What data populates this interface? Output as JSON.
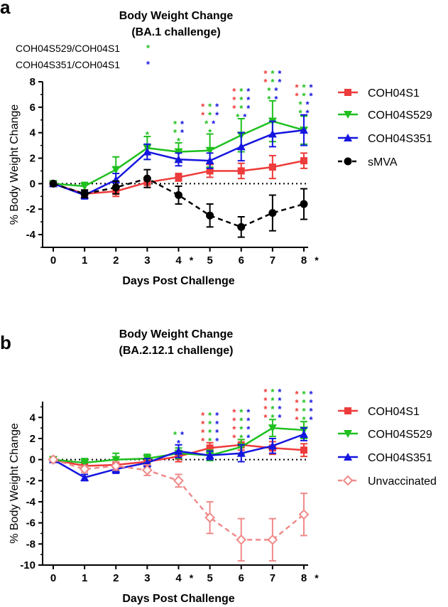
{
  "colors": {
    "COH04S1": "#ee3b3b",
    "COH04S529": "#1fc01f",
    "COH04S351": "#1515e0",
    "sMVA": "#000000",
    "Unvaccinated": "#f08a8a"
  },
  "chart_data": [
    {
      "type": "line",
      "panel_label": "a",
      "title": "Body Weight Change",
      "subtitle": "(BA.1 challenge)",
      "xlabel": "Days Post Challenge",
      "ylabel": "% Body Weight Change",
      "x": [
        0,
        1,
        2,
        3,
        4,
        5,
        6,
        7,
        8
      ],
      "x_tick_labels": [
        "0",
        "1",
        "2",
        "3",
        "4",
        "5",
        "6",
        "7",
        "8"
      ],
      "ylim": [
        -5,
        8
      ],
      "y_ticks": [
        -4,
        -2,
        0,
        2,
        4,
        6,
        8
      ],
      "y_tick_labels": [
        "-4",
        "-2",
        "0",
        "2",
        "4",
        "6",
        "8"
      ],
      "significant_days_marker": "*",
      "significant_days": [
        4,
        8
      ],
      "comparison_notes": [
        {
          "text": "COH04S529/COH04S1",
          "star": "*",
          "color_key": "COH04S529"
        },
        {
          "text": "COH04S351/COH04S1",
          "star": "*",
          "color_key": "COH04S351"
        }
      ],
      "legend": [
        "COH04S1",
        "COH04S529",
        "COH04S351",
        "sMVA"
      ],
      "series": [
        {
          "name": "COH04S1",
          "color_key": "COH04S1",
          "marker": "square",
          "dashed": false,
          "values": [
            0,
            -0.8,
            -0.6,
            0.1,
            0.5,
            1.0,
            1.0,
            1.3,
            1.8
          ],
          "errors": [
            0,
            0.3,
            0.4,
            0.4,
            0.3,
            0.5,
            0.6,
            0.9,
            0.6
          ]
        },
        {
          "name": "COH04S529",
          "color_key": "COH04S529",
          "marker": "triangle-down",
          "dashed": false,
          "values": [
            0,
            -0.2,
            1.1,
            2.8,
            2.5,
            2.6,
            3.8,
            4.9,
            4.2
          ],
          "errors": [
            0,
            0.3,
            1.0,
            0.9,
            0.7,
            1.3,
            1.3,
            1.6,
            1.1
          ]
        },
        {
          "name": "COH04S351",
          "color_key": "COH04S351",
          "marker": "triangle-up",
          "dashed": false,
          "values": [
            0,
            -0.9,
            0.3,
            2.5,
            1.9,
            1.8,
            2.9,
            3.9,
            4.2
          ],
          "errors": [
            0,
            0.3,
            0.5,
            0.6,
            0.5,
            0.6,
            1.1,
            1.0,
            1.2
          ]
        },
        {
          "name": "sMVA",
          "color_key": "sMVA",
          "marker": "circle",
          "dashed": true,
          "values": [
            0,
            -0.8,
            -0.3,
            0.4,
            -0.9,
            -2.5,
            -3.4,
            -2.3,
            -1.6
          ],
          "errors": [
            0,
            0.3,
            0.5,
            0.7,
            0.7,
            0.9,
            0.8,
            1.4,
            1.2
          ]
        }
      ],
      "stars": [
        {
          "day": 3,
          "rows": [
            [
              "COH04S529"
            ]
          ]
        },
        {
          "day": 4,
          "rows": [
            [
              "COH04S529",
              "COH04S351"
            ],
            [
              "COH04S529",
              "COH04S351"
            ],
            [
              "COH04S529"
            ]
          ]
        },
        {
          "day": 5,
          "rows": [
            [
              "COH04S1",
              "COH04S529",
              "COH04S351"
            ],
            [
              "COH04S1",
              "COH04S529",
              "COH04S351"
            ],
            [
              "COH04S529",
              "COH04S351"
            ],
            [
              "COH04S529"
            ]
          ]
        },
        {
          "day": 6,
          "rows": [
            [
              "COH04S1",
              "COH04S529",
              "COH04S351"
            ],
            [
              "COH04S1",
              "COH04S529",
              "COH04S351"
            ],
            [
              "COH04S1",
              "COH04S529",
              "COH04S351"
            ],
            [
              "COH04S529",
              "COH04S351"
            ]
          ]
        },
        {
          "day": 7,
          "rows": [
            [
              "COH04S1",
              "COH04S529",
              "COH04S351"
            ],
            [
              "COH04S1",
              "COH04S529",
              "COH04S351"
            ],
            [
              "COH04S529",
              "COH04S351"
            ],
            [
              "COH04S529",
              "COH04S351"
            ]
          ]
        },
        {
          "day": 8,
          "rows": [
            [
              "COH04S1",
              "COH04S529",
              "COH04S351"
            ],
            [
              "COH04S1",
              "COH04S529",
              "COH04S351"
            ],
            [
              "COH04S529",
              "COH04S351"
            ],
            [
              "COH04S529",
              "COH04S351"
            ]
          ]
        }
      ]
    },
    {
      "type": "line",
      "panel_label": "b",
      "title": "Body Weight Change",
      "subtitle": "(BA.2.12.1 challenge)",
      "xlabel": "Days Post Challenge",
      "ylabel": "% Body Weight Change",
      "x": [
        0,
        1,
        2,
        3,
        4,
        5,
        6,
        7,
        8
      ],
      "x_tick_labels": [
        "0",
        "1",
        "2",
        "3",
        "4",
        "5",
        "6",
        "7",
        "8"
      ],
      "ylim": [
        -10,
        5.5
      ],
      "y_ticks": [
        -10,
        -8,
        -6,
        -4,
        -2,
        0,
        2,
        4
      ],
      "y_tick_labels": [
        "-10",
        "-8",
        "-6",
        "-4",
        "-2",
        "0",
        "2",
        "4"
      ],
      "significant_days_marker": "*",
      "significant_days": [
        4,
        8
      ],
      "comparison_notes": [],
      "legend": [
        "COH04S1",
        "COH04S529",
        "COH04S351",
        "Unvaccinated"
      ],
      "series": [
        {
          "name": "COH04S1",
          "color_key": "COH04S1",
          "marker": "square",
          "dashed": false,
          "values": [
            0,
            -0.6,
            -0.5,
            -0.2,
            0.3,
            1.1,
            1.4,
            1.1,
            0.9
          ],
          "errors": [
            0,
            0.4,
            0.5,
            0.5,
            0.5,
            0.5,
            0.5,
            0.6,
            0.6
          ]
        },
        {
          "name": "COH04S529",
          "color_key": "COH04S529",
          "marker": "triangle-down",
          "dashed": false,
          "values": [
            0,
            -0.3,
            0,
            0.1,
            0.6,
            0.4,
            1.2,
            3.0,
            2.8
          ],
          "errors": [
            0,
            0.4,
            0.6,
            0.4,
            0.5,
            0.5,
            0.7,
            0.8,
            0.8
          ]
        },
        {
          "name": "COH04S351",
          "color_key": "COH04S351",
          "marker": "triangle-up",
          "dashed": false,
          "values": [
            0,
            -1.7,
            -0.9,
            -0.3,
            0.8,
            0.4,
            0.6,
            1.3,
            2.4
          ],
          "errors": [
            0,
            0.3,
            0.4,
            0.4,
            0.6,
            0.4,
            0.8,
            0.7,
            0.6
          ]
        },
        {
          "name": "Unvaccinated",
          "color_key": "Unvaccinated",
          "marker": "diamond-open",
          "dashed": true,
          "values": [
            0,
            -0.9,
            -0.6,
            -1.0,
            -2.0,
            -5.5,
            -7.6,
            -7.6,
            -5.2
          ],
          "errors": [
            0,
            0.3,
            0.4,
            0.5,
            0.6,
            1.5,
            2.0,
            2.0,
            2.0
          ]
        }
      ],
      "stars": [
        {
          "day": 4,
          "rows": [
            [
              "COH04S529",
              "COH04S351"
            ],
            [
              "COH04S351"
            ]
          ]
        },
        {
          "day": 5,
          "rows": [
            [
              "COH04S1",
              "COH04S529",
              "COH04S351"
            ],
            [
              "COH04S1",
              "COH04S529",
              "COH04S351"
            ],
            [
              "COH04S1",
              "COH04S529",
              "COH04S351"
            ],
            [
              "COH04S1",
              "COH04S529",
              "COH04S351"
            ]
          ]
        },
        {
          "day": 6,
          "rows": [
            [
              "COH04S1",
              "COH04S529",
              "COH04S351"
            ],
            [
              "COH04S1",
              "COH04S529",
              "COH04S351"
            ],
            [
              "COH04S1",
              "COH04S529",
              "COH04S351"
            ],
            [
              "COH04S1",
              "COH04S529",
              "COH04S351"
            ]
          ]
        },
        {
          "day": 7,
          "rows": [
            [
              "COH04S1",
              "COH04S529",
              "COH04S351"
            ],
            [
              "COH04S1",
              "COH04S529",
              "COH04S351"
            ],
            [
              "COH04S1",
              "COH04S529",
              "COH04S351"
            ],
            [
              "COH04S1",
              "COH04S529",
              "COH04S351"
            ]
          ]
        },
        {
          "day": 8,
          "rows": [
            [
              "COH04S1",
              "COH04S529",
              "COH04S351"
            ],
            [
              "COH04S1",
              "COH04S529",
              "COH04S351"
            ],
            [
              "COH04S1",
              "COH04S529",
              "COH04S351"
            ],
            [
              "COH04S1",
              "COH04S529",
              "COH04S351"
            ]
          ]
        }
      ]
    }
  ]
}
